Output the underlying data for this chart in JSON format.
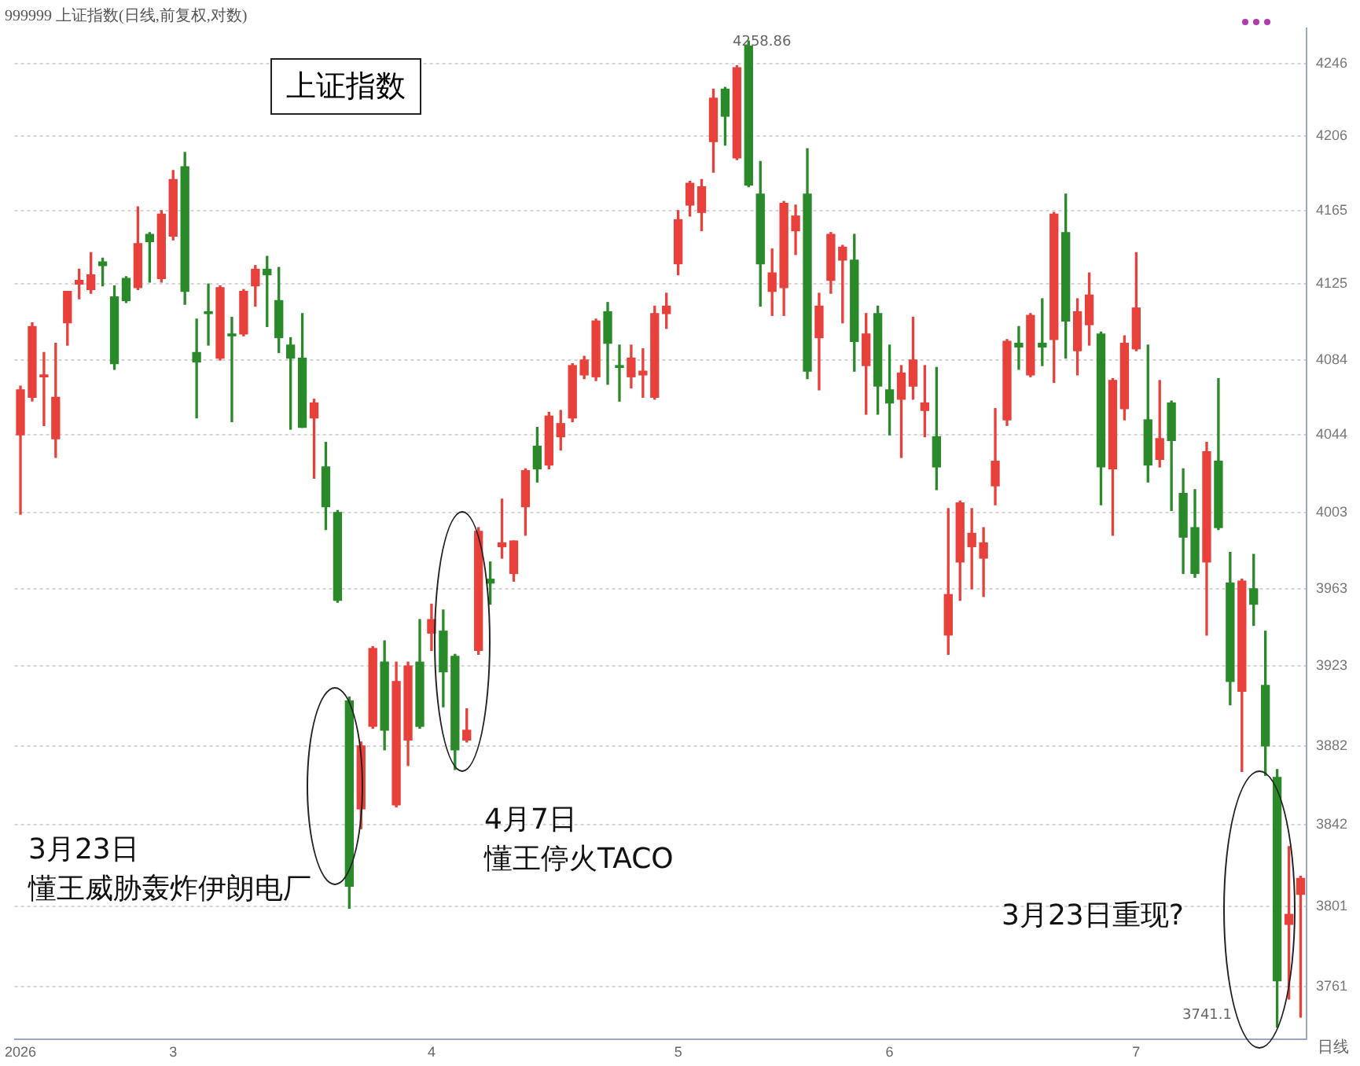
{
  "chart_data": {
    "type": "candlestick",
    "title": "上证指数",
    "subtitle": "999999 上证指数(日线,前复权,对数)",
    "categories": [
      "2026",
      null,
      null,
      null,
      null,
      null,
      null,
      null,
      null,
      null,
      null,
      null,
      null,
      "3",
      null,
      null,
      null,
      null,
      null,
      null,
      null,
      null,
      null,
      null,
      null,
      null,
      null,
      null,
      null,
      null,
      null,
      null,
      null,
      null,
      null,
      "4",
      null,
      null,
      null,
      null,
      null,
      null,
      null,
      null,
      null,
      null,
      null,
      null,
      null,
      null,
      null,
      null,
      null,
      null,
      null,
      null,
      "5",
      null,
      null,
      null,
      null,
      null,
      null,
      null,
      null,
      null,
      null,
      null,
      null,
      null,
      null,
      null,
      null,
      null,
      "6",
      null,
      null,
      null,
      null,
      null,
      null,
      null,
      null,
      null,
      null,
      null,
      null,
      null,
      null,
      null,
      null,
      null,
      null,
      null,
      null,
      "7",
      null,
      null,
      null,
      null,
      null,
      null,
      null,
      null,
      null,
      null,
      null,
      null,
      null,
      null
    ],
    "ohlc": [
      [
        4044,
        4070,
        4002,
        4068
      ],
      [
        4064,
        4104,
        4062,
        4102
      ],
      [
        4075,
        4088,
        4049,
        4076
      ],
      [
        4042,
        4093,
        4032,
        4064
      ],
      [
        4104,
        4121,
        4092,
        4121
      ],
      [
        4125,
        4133,
        4117,
        4127
      ],
      [
        4122,
        4142,
        4120,
        4130
      ],
      [
        4137,
        4139,
        4124,
        4135
      ],
      [
        4118,
        4124,
        4079,
        4082
      ],
      [
        4128,
        4129,
        4115,
        4116
      ],
      [
        4123,
        4167,
        4122,
        4147
      ],
      [
        4152,
        4153,
        4126,
        4148
      ],
      [
        4128,
        4165,
        4126,
        4163
      ],
      [
        4151,
        4187,
        4149,
        4182
      ],
      [
        4189,
        4197,
        4114,
        4121
      ],
      [
        4088,
        4106,
        4053,
        4083
      ],
      [
        4110,
        4125,
        4092,
        4109
      ],
      [
        4085,
        4124,
        4084,
        4123
      ],
      [
        4098,
        4107,
        4051,
        4097
      ],
      [
        4098,
        4122,
        4097,
        4121
      ],
      [
        4124,
        4135,
        4113,
        4133
      ],
      [
        4133,
        4140,
        4102,
        4130
      ],
      [
        4116,
        4134,
        4088,
        4096
      ],
      [
        4092,
        4096,
        4047,
        4085
      ],
      [
        4085,
        4109,
        4048,
        4048
      ],
      [
        4053,
        4063,
        4021,
        4061
      ],
      [
        4027,
        4040,
        3994,
        4006
      ],
      [
        4003,
        4004,
        3956,
        3957
      ],
      [
        3905,
        3907,
        3800,
        3811
      ],
      [
        3850,
        3884,
        3840,
        3882
      ],
      [
        3892,
        3933,
        3891,
        3932
      ],
      [
        3925,
        3936,
        3880,
        3890
      ],
      [
        3852,
        3925,
        3851,
        3915
      ],
      [
        3885,
        3925,
        3872,
        3923
      ],
      [
        3925,
        3947,
        3891,
        3892
      ],
      [
        3940,
        3955,
        3931,
        3947
      ],
      [
        3941,
        3952,
        3902,
        3920
      ],
      [
        3928,
        3929,
        3870,
        3880
      ],
      [
        3885,
        3901,
        3884,
        3890
      ],
      [
        3931,
        3995,
        3929,
        3993
      ],
      [
        3968,
        3977,
        3955,
        3966
      ],
      [
        3985,
        4010,
        3979,
        3987
      ],
      [
        3971,
        3988,
        3967,
        3988
      ],
      [
        4006,
        4026,
        3991,
        4025
      ],
      [
        4038,
        4048,
        4019,
        4026
      ],
      [
        4028,
        4056,
        4026,
        4054
      ],
      [
        4043,
        4057,
        4036,
        4050
      ],
      [
        4053,
        4082,
        4051,
        4081
      ],
      [
        4076,
        4086,
        4074,
        4084
      ],
      [
        4075,
        4106,
        4073,
        4105
      ],
      [
        4110,
        4115,
        4071,
        4093
      ],
      [
        4081,
        4092,
        4062,
        4080
      ],
      [
        4075,
        4092,
        4069,
        4085
      ],
      [
        4076,
        4090,
        4064,
        4078
      ],
      [
        4064,
        4113,
        4063,
        4109
      ],
      [
        4109,
        4120,
        4101,
        4113
      ],
      [
        4136,
        4165,
        4130,
        4160
      ],
      [
        4168,
        4181,
        4162,
        4180
      ],
      [
        4164,
        4182,
        4154,
        4178
      ],
      [
        4203,
        4232,
        4186,
        4227
      ],
      [
        4232,
        4233,
        4201,
        4217
      ],
      [
        4194,
        4245,
        4193,
        4244
      ],
      [
        4256,
        4258.86,
        4178,
        4179
      ],
      [
        4174,
        4192,
        4113,
        4136
      ],
      [
        4121,
        4144,
        4108,
        4131
      ],
      [
        4123,
        4170,
        4108,
        4169
      ],
      [
        4154,
        4168,
        4141,
        4162
      ],
      [
        4174,
        4199,
        4074,
        4078
      ],
      [
        4096,
        4120,
        4068,
        4113
      ],
      [
        4127,
        4153,
        4120,
        4152
      ],
      [
        4138,
        4146,
        4104,
        4145
      ],
      [
        4138,
        4152,
        4078,
        4094
      ],
      [
        4081,
        4109,
        4055,
        4098
      ],
      [
        4109,
        4113,
        4055,
        4070
      ],
      [
        4068,
        4092,
        4044,
        4061
      ],
      [
        4063,
        4081,
        4032,
        4077
      ],
      [
        4070,
        4107,
        4063,
        4084
      ],
      [
        4057,
        4081,
        4043,
        4061
      ],
      [
        4043,
        4080,
        4015,
        4027
      ],
      [
        3939,
        4005,
        3929,
        3960
      ],
      [
        3977,
        4009,
        3957,
        4008
      ],
      [
        3985,
        4005,
        3963,
        3992
      ],
      [
        3979,
        3995,
        3959,
        3987
      ],
      [
        4017,
        4058,
        4007,
        4030
      ],
      [
        4052,
        4095,
        4049,
        4094
      ],
      [
        4093,
        4102,
        4079,
        4091
      ],
      [
        4076,
        4109,
        4075,
        4108
      ],
      [
        4093,
        4117,
        4081,
        4091
      ],
      [
        4095,
        4164,
        4072,
        4163
      ],
      [
        4153,
        4174,
        4085,
        4105
      ],
      [
        4089,
        4117,
        4076,
        4110
      ],
      [
        4103,
        4131,
        4092,
        4119
      ],
      [
        4098,
        4099,
        4007,
        4027
      ],
      [
        4026,
        4074,
        3991,
        4073
      ],
      [
        4058,
        4097,
        4052,
        4093
      ],
      [
        4090,
        4142,
        4089,
        4112
      ],
      [
        4052,
        4092,
        4019,
        4028
      ],
      [
        4031,
        4073,
        4027,
        4042
      ],
      [
        4061,
        4062,
        4004,
        4041
      ],
      [
        4013,
        4026,
        3971,
        3990
      ],
      [
        3995,
        4015,
        3969,
        3971
      ],
      [
        3977,
        4040,
        3939,
        4035
      ],
      [
        4030,
        4074,
        3994,
        3995
      ],
      [
        3966,
        3982,
        3903,
        3915
      ],
      [
        3910,
        3968,
        3869,
        3967
      ],
      [
        3963,
        3981,
        3944,
        3955
      ],
      [
        3913,
        3941,
        3867,
        3882
      ],
      [
        3866,
        3870,
        3741.1,
        3764
      ],
      [
        3792,
        3831,
        3755,
        3797
      ],
      [
        3807,
        3816,
        3746,
        3815
      ]
    ],
    "colors": [
      "#e8403a",
      "#e8403a",
      "#e8403a",
      "#e8403a",
      "#e8403a",
      "#e8403a",
      "#e8403a",
      "#2a8a2a",
      "#2a8a2a",
      "#2a8a2a",
      "#e8403a",
      "#2a8a2a",
      "#e8403a",
      "#e8403a",
      "#2a8a2a",
      "#2a8a2a",
      "#2a8a2a",
      "#e8403a",
      "#2a8a2a",
      "#e8403a",
      "#e8403a",
      "#2a8a2a",
      "#2a8a2a",
      "#2a8a2a",
      "#2a8a2a",
      "#e8403a",
      "#2a8a2a",
      "#2a8a2a",
      "#2a8a2a",
      "#e8403a",
      "#e8403a",
      "#2a8a2a",
      "#e8403a",
      "#e8403a",
      "#2a8a2a",
      "#e8403a",
      "#2a8a2a",
      "#2a8a2a",
      "#e8403a",
      "#e8403a",
      "#2a8a2a",
      "#e8403a",
      "#e8403a",
      "#e8403a",
      "#2a8a2a",
      "#e8403a",
      "#e8403a",
      "#e8403a",
      "#e8403a",
      "#e8403a",
      "#2a8a2a",
      "#2a8a2a",
      "#e8403a",
      "#e8403a",
      "#e8403a",
      "#e8403a",
      "#e8403a",
      "#e8403a",
      "#e8403a",
      "#e8403a",
      "#2a8a2a",
      "#e8403a",
      "#2a8a2a",
      "#2a8a2a",
      "#e8403a",
      "#e8403a",
      "#e8403a",
      "#2a8a2a",
      "#e8403a",
      "#e8403a",
      "#e8403a",
      "#2a8a2a",
      "#e8403a",
      "#2a8a2a",
      "#2a8a2a",
      "#e8403a",
      "#e8403a",
      "#e8403a",
      "#2a8a2a",
      "#e8403a",
      "#e8403a",
      "#e8403a",
      "#e8403a",
      "#e8403a",
      "#e8403a",
      "#2a8a2a",
      "#e8403a",
      "#2a8a2a",
      "#e8403a",
      "#2a8a2a",
      "#e8403a",
      "#e8403a",
      "#2a8a2a",
      "#e8403a",
      "#e8403a",
      "#e8403a",
      "#2a8a2a",
      "#e8403a",
      "#2a8a2a",
      "#2a8a2a",
      "#2a8a2a",
      "#e8403a",
      "#2a8a2a",
      "#2a8a2a",
      "#e8403a",
      "#2a8a2a",
      "#2a8a2a",
      "#2a8a2a",
      "#e8403a",
      "#e8403a"
    ],
    "log": "y",
    "ylim": [
      3735,
      4266
    ],
    "yticks": [
      3761,
      3801,
      3842,
      3882,
      3923,
      3963,
      4003,
      4044,
      4084,
      4125,
      4165,
      4206,
      4246
    ],
    "grid": "y",
    "annotations": [
      "3月23日",
      "懂王威胁轰炸伊朗电厂",
      "4月7日",
      "懂王停火TACO",
      "3月23日重现?",
      "4258.86",
      "3741.1",
      "日线"
    ]
  }
}
